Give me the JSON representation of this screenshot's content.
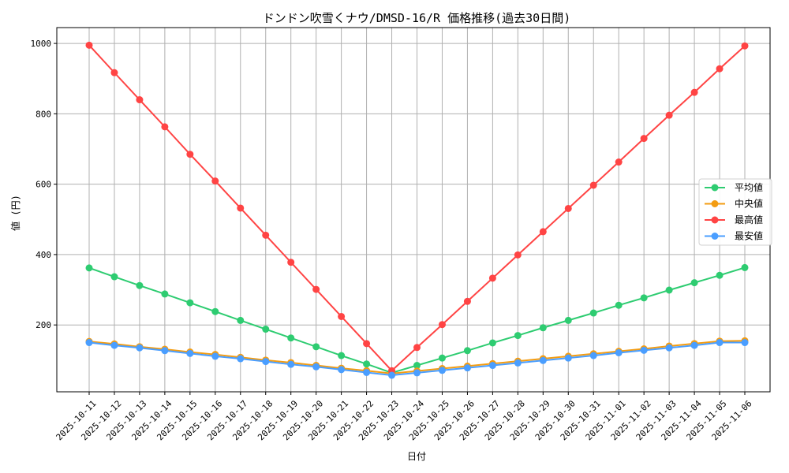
{
  "chart_data": {
    "type": "line",
    "title": "ドンドン吹雪くナウ/DMSD-16/R 価格推移(過去30日間)",
    "xlabel": "日付",
    "ylabel": "値 (円)",
    "ylim": [
      10,
      1045
    ],
    "yticks": [
      200,
      400,
      600,
      800,
      1000
    ],
    "grid": true,
    "legend_position": "center-right",
    "x": [
      "2025-10-11",
      "2025-10-12",
      "2025-10-13",
      "2025-10-14",
      "2025-10-15",
      "2025-10-16",
      "2025-10-17",
      "2025-10-18",
      "2025-10-19",
      "2025-10-20",
      "2025-10-21",
      "2025-10-22",
      "2025-10-23",
      "2025-10-24",
      "2025-10-25",
      "2025-10-26",
      "2025-10-27",
      "2025-10-28",
      "2025-10-29",
      "2025-10-30",
      "2025-10-31",
      "2025-11-01",
      "2025-11-02",
      "2025-11-03",
      "2025-11-04",
      "2025-11-05",
      "2025-11-06"
    ],
    "series": [
      {
        "name": "平均値",
        "color": "#2ecc71",
        "values": [
          362,
          337,
          312,
          288,
          263,
          238,
          213,
          188,
          163,
          138,
          113,
          89,
          64,
          85,
          106,
          127,
          149,
          170,
          192,
          213,
          234,
          256,
          277,
          299,
          320,
          341,
          363
        ]
      },
      {
        "name": "中央値",
        "color": "#f39c12",
        "values": [
          153,
          146,
          138,
          131,
          123,
          116,
          108,
          100,
          93,
          85,
          77,
          70,
          62,
          69,
          76,
          83,
          90,
          97,
          104,
          111,
          118,
          125,
          132,
          140,
          147,
          154,
          155
        ]
      },
      {
        "name": "最高値",
        "color": "#ff4444",
        "values": [
          995,
          917,
          840,
          763,
          685,
          609,
          532,
          455,
          378,
          301,
          224,
          147,
          70,
          136,
          201,
          267,
          333,
          399,
          465,
          531,
          597,
          663,
          730,
          796,
          861,
          928,
          993
        ]
      },
      {
        "name": "最安値",
        "color": "#4a9eff",
        "values": [
          150,
          142,
          135,
          127,
          119,
          111,
          104,
          96,
          88,
          81,
          73,
          65,
          57,
          64,
          71,
          78,
          85,
          92,
          99,
          106,
          113,
          121,
          128,
          135,
          142,
          150,
          150
        ]
      }
    ]
  }
}
